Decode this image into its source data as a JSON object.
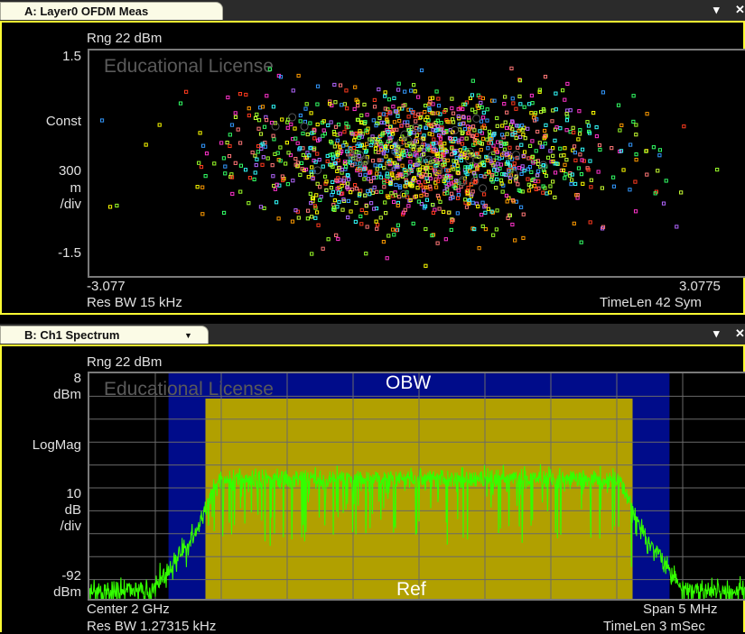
{
  "panel_a": {
    "tab_label": "A: Layer0 OFDM Meas",
    "range": "Rng 22 dBm",
    "y_top": "1.5",
    "y_format": "Const",
    "y_scale_1": "300",
    "y_scale_2": "m",
    "y_scale_3": "/div",
    "y_bottom": "-1.5",
    "x_left": "-3.077",
    "x_right": "3.0775",
    "res_bw": "Res BW 15 kHz",
    "timelen": "TimeLen 42  Sym",
    "watermark": "Educational License"
  },
  "panel_b": {
    "tab_label": "B: Ch1 Spectrum",
    "range": "Rng 22 dBm",
    "y_top_1": "8",
    "y_top_2": "dBm",
    "y_format": "LogMag",
    "y_scale_1": "10",
    "y_scale_2": "dB",
    "y_scale_3": "/div",
    "y_bottom_1": "-92",
    "y_bottom_2": "dBm",
    "obw_label": "OBW",
    "ref_label": "Ref",
    "center": "Center 2 GHz",
    "span": "Span 5 MHz",
    "res_bw": "Res BW 1.27315 kHz",
    "timelen": "TimeLen 3 mSec",
    "watermark": "Educational License"
  },
  "window_buttons": {
    "dropdown": "▾",
    "close": "✕"
  },
  "colors": {
    "panel_border": "#ffff33",
    "tab_bg": "#fbfbe6",
    "trace": "#33ff00",
    "obw_band": "#b1a000",
    "ref_band": "#000c8a"
  },
  "chart_data": [
    {
      "type": "scatter",
      "title": "",
      "xlabel": "",
      "ylabel": "Const",
      "xlim": [
        -3.077,
        3.0775
      ],
      "ylim": [
        -1.5,
        1.5
      ],
      "grid": false,
      "legend": "none",
      "note_series": "constellation points, multi-colored cluster centered near (0, 0.1)"
    },
    {
      "type": "line",
      "title": "",
      "xlabel": "Center 2 GHz / Span 5 MHz",
      "ylabel": "LogMag",
      "x": [
        -2.5,
        -2.0,
        -1.7,
        -1.55,
        -1.5,
        -1.0,
        0.0,
        1.0,
        1.5,
        1.55,
        1.7,
        2.0,
        2.5
      ],
      "y": [
        -87,
        -86,
        -62,
        -41,
        -38,
        -38,
        -38,
        -38,
        -38,
        -41,
        -62,
        -86,
        -87
      ],
      "xlim": [
        -2.5,
        2.5
      ],
      "ylim": [
        -92,
        8
      ],
      "grid": true,
      "legend": "none"
    }
  ]
}
